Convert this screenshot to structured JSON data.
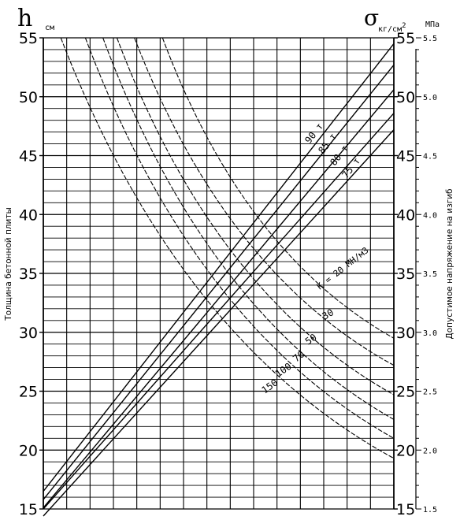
{
  "chart_data": {
    "type": "line",
    "title": "",
    "left_axis": {
      "symbol": "h",
      "unit": "см",
      "label": "Толщина бетонной плиты",
      "range": [
        15,
        55
      ],
      "ticks": [
        15,
        20,
        25,
        30,
        35,
        40,
        45,
        50,
        55
      ]
    },
    "right_axis": {
      "symbol": "σ",
      "unit": "кг/см",
      "unit_sup": "2",
      "label": "Допустимое напряжение на изгиб",
      "range": [
        15,
        55
      ],
      "ticks": [
        15,
        20,
        25,
        30,
        35,
        40,
        45,
        50,
        55
      ]
    },
    "right_axis_mpa": {
      "unit": "МПа",
      "range": [
        1.5,
        5.5
      ],
      "ticks": [
        "1.5",
        "2.0",
        "2.5",
        "3.0",
        "3.5",
        "4.0",
        "4.5",
        "5.0",
        "5.5"
      ]
    },
    "grid": true,
    "load_lines": [
      {
        "name": "90 т",
        "y_left": 16.5,
        "y_right": 54.5
      },
      {
        "name": "85 т",
        "y_left": 15.8,
        "y_right": 52.7
      },
      {
        "name": "80 т",
        "y_left": 15.1,
        "y_right": 50.6
      },
      {
        "name": "75 т",
        "y_left": 15.0,
        "y_right": 48.6
      },
      {
        "name": "",
        "y_left": 14.4,
        "y_right": 47.2
      }
    ],
    "k_curves": [
      {
        "name": "К = 20 МН/м3",
        "points": [
          [
            0.34,
            55
          ],
          [
            1,
            29.5
          ]
        ]
      },
      {
        "name": "30",
        "points": [
          [
            0.26,
            55
          ],
          [
            1,
            27.2
          ]
        ]
      },
      {
        "name": "50",
        "points": [
          [
            0.21,
            55
          ],
          [
            1,
            24.7
          ]
        ]
      },
      {
        "name": "70",
        "points": [
          [
            0.17,
            55
          ],
          [
            1,
            22.6
          ]
        ]
      },
      {
        "name": "100",
        "points": [
          [
            0.12,
            55
          ],
          [
            1,
            21.0
          ]
        ]
      },
      {
        "name": "150",
        "points": [
          [
            0.05,
            55
          ],
          [
            1,
            19.3
          ]
        ]
      }
    ]
  }
}
